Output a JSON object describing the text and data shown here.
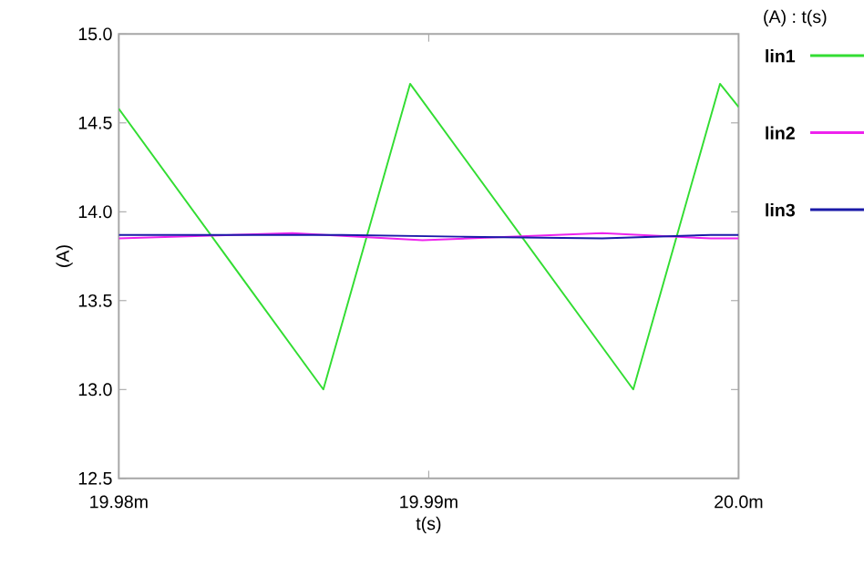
{
  "chart_data": {
    "type": "line",
    "xlabel": "t(s)",
    "ylabel": "(A)",
    "legend_title": "(A) : t(s)",
    "legend": "right",
    "xlim": [
      19.98,
      20.0
    ],
    "xticks": [
      {
        "value": 19.98,
        "label": "19.98m"
      },
      {
        "value": 19.99,
        "label": "19.99m"
      },
      {
        "value": 20.0,
        "label": "20.0m"
      }
    ],
    "ylim": [
      12.5,
      15.0
    ],
    "yticks": [
      {
        "value": 12.5,
        "label": "12.5"
      },
      {
        "value": 13.0,
        "label": "13.0"
      },
      {
        "value": 13.5,
        "label": "13.5"
      },
      {
        "value": 14.0,
        "label": "14.0"
      },
      {
        "value": 14.5,
        "label": "14.5"
      },
      {
        "value": 15.0,
        "label": "15.0"
      }
    ],
    "grid": false,
    "series": [
      {
        "name": "lin1",
        "color": "#33dd33",
        "x": [
          19.98,
          19.9866,
          19.9894,
          19.9966,
          19.9994,
          20.0
        ],
        "values": [
          14.58,
          13.0,
          14.72,
          13.0,
          14.72,
          14.59
        ]
      },
      {
        "name": "lin2",
        "color": "#ee22ee",
        "x": [
          19.98,
          19.9856,
          19.9898,
          19.9956,
          19.9991,
          20.0
        ],
        "values": [
          13.85,
          13.88,
          13.84,
          13.88,
          13.85,
          13.85
        ]
      },
      {
        "name": "lin3",
        "color": "#1a1aa8",
        "x": [
          19.98,
          19.9872,
          19.991,
          19.9956,
          19.9991,
          20.0
        ],
        "values": [
          13.87,
          13.87,
          13.86,
          13.85,
          13.87,
          13.87
        ]
      }
    ]
  }
}
